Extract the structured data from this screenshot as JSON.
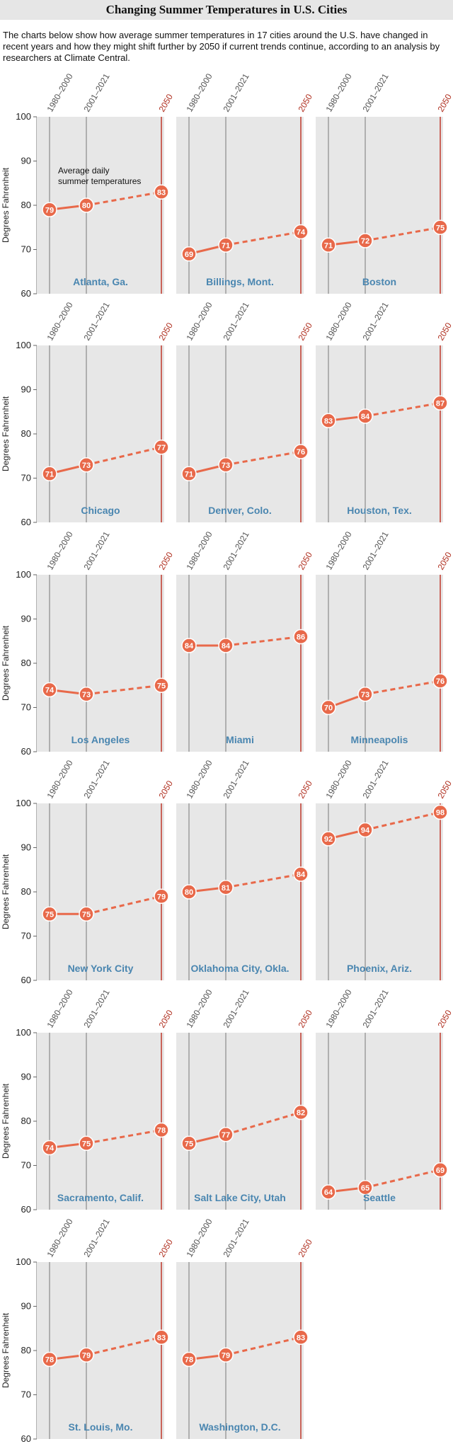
{
  "header": {
    "title": "Changing Summer Temperatures in U.S. Cities",
    "intro": "The charts below show how average summer temperatures in 17 cities around the U.S. have changed in recent years and how they might shift further by 2050 if current trends continue, according to an analysis by researchers at Climate Central."
  },
  "colors": {
    "accent": "#e8694a",
    "future_line": "#c0392b",
    "panel": "#e7e7e7",
    "city_label": "#4a86b0"
  },
  "chart_data": {
    "type": "line",
    "x": [
      "1980–2000",
      "2001–2021",
      "2050"
    ],
    "ylabel": "Degrees Fahrenheit",
    "ylim": [
      60,
      100
    ],
    "yticks": [
      60,
      70,
      80,
      90,
      100
    ],
    "annotation": "Average daily summer temperatures",
    "grid": false,
    "series": [
      {
        "name": "Atlanta, Ga.",
        "values": [
          79,
          80,
          83
        ]
      },
      {
        "name": "Billings, Mont.",
        "values": [
          69,
          71,
          74
        ]
      },
      {
        "name": "Boston",
        "values": [
          71,
          72,
          75
        ]
      },
      {
        "name": "Chicago",
        "values": [
          71,
          73,
          77
        ]
      },
      {
        "name": "Denver, Colo.",
        "values": [
          71,
          73,
          76
        ]
      },
      {
        "name": "Houston, Tex.",
        "values": [
          83,
          84,
          87
        ]
      },
      {
        "name": "Los Angeles",
        "values": [
          74,
          73,
          75
        ]
      },
      {
        "name": "Miami",
        "values": [
          84,
          84,
          86
        ]
      },
      {
        "name": "Minneapolis",
        "values": [
          70,
          73,
          76
        ]
      },
      {
        "name": "New York City",
        "values": [
          75,
          75,
          79
        ]
      },
      {
        "name": "Oklahoma City, Okla.",
        "values": [
          80,
          81,
          84
        ]
      },
      {
        "name": "Phoenix, Ariz.",
        "values": [
          92,
          94,
          98
        ]
      },
      {
        "name": "Sacramento, Calif.",
        "values": [
          74,
          75,
          78
        ]
      },
      {
        "name": "Salt Lake City, Utah",
        "values": [
          75,
          77,
          82
        ]
      },
      {
        "name": "Seattle",
        "values": [
          64,
          65,
          69
        ]
      },
      {
        "name": "St. Louis, Mo.",
        "values": [
          78,
          79,
          83
        ]
      },
      {
        "name": "Washington, D.C.",
        "values": [
          78,
          79,
          83
        ]
      }
    ]
  }
}
